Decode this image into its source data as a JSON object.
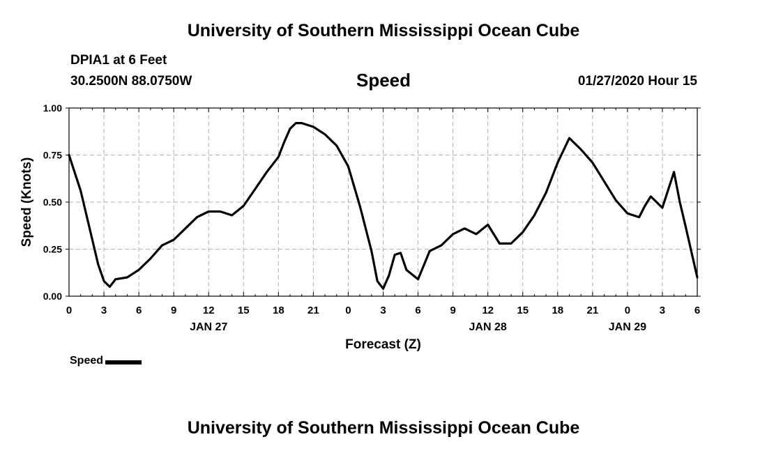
{
  "header": {
    "title_top": "University of Southern Mississippi Ocean Cube",
    "title_bottom": "University of Southern Mississippi Ocean Cube",
    "station": "DPIA1 at 6 Feet",
    "coords": "30.2500N 88.0750W",
    "variable": "Speed",
    "run": "01/27/2020 Hour 15"
  },
  "legend": {
    "label": "Speed",
    "color": "#000000"
  },
  "chart_data": {
    "type": "line",
    "title": "Speed",
    "xlabel": "Forecast (Z)",
    "ylabel": "Speed (Knots)",
    "ylim": [
      0,
      1
    ],
    "xlim": [
      0,
      54
    ],
    "grid": true,
    "yticks": [
      {
        "value": 0,
        "label": "0.00"
      },
      {
        "value": 0.25,
        "label": "0.25"
      },
      {
        "value": 0.5,
        "label": "0.50"
      },
      {
        "value": 0.75,
        "label": "0.75"
      },
      {
        "value": 1.0,
        "label": "1.00"
      }
    ],
    "xticks": [
      {
        "value": 0,
        "label": "0"
      },
      {
        "value": 3,
        "label": "3"
      },
      {
        "value": 6,
        "label": "6"
      },
      {
        "value": 9,
        "label": "9"
      },
      {
        "value": 12,
        "label": "12"
      },
      {
        "value": 15,
        "label": "15"
      },
      {
        "value": 18,
        "label": "18"
      },
      {
        "value": 21,
        "label": "21"
      },
      {
        "value": 24,
        "label": "0"
      },
      {
        "value": 27,
        "label": "3"
      },
      {
        "value": 30,
        "label": "6"
      },
      {
        "value": 33,
        "label": "9"
      },
      {
        "value": 36,
        "label": "12"
      },
      {
        "value": 39,
        "label": "15"
      },
      {
        "value": 42,
        "label": "18"
      },
      {
        "value": 45,
        "label": "21"
      },
      {
        "value": 48,
        "label": "0"
      },
      {
        "value": 51,
        "label": "3"
      },
      {
        "value": 54,
        "label": "6"
      }
    ],
    "date_labels": [
      {
        "value": 12,
        "label": "JAN 27"
      },
      {
        "value": 36,
        "label": "JAN 28"
      },
      {
        "value": 48,
        "label": "JAN 29"
      }
    ],
    "series": [
      {
        "name": "Speed",
        "color": "#000000",
        "x": [
          0,
          1,
          2,
          2.5,
          3,
          3.5,
          4,
          5,
          6,
          7,
          8,
          9,
          10,
          11,
          12,
          13,
          14,
          15,
          16,
          17,
          18,
          18.5,
          19,
          19.5,
          20,
          21,
          22,
          23,
          24,
          25,
          26,
          26.5,
          27,
          27.5,
          28,
          28.5,
          29,
          30,
          31,
          32,
          33,
          34,
          35,
          36,
          37,
          38,
          39,
          40,
          41,
          42,
          43,
          44,
          45,
          46,
          47,
          48,
          49,
          49.5,
          50,
          51,
          52,
          52.5,
          53,
          54
        ],
        "y": [
          0.75,
          0.56,
          0.3,
          0.17,
          0.08,
          0.05,
          0.09,
          0.1,
          0.14,
          0.2,
          0.27,
          0.3,
          0.36,
          0.42,
          0.45,
          0.45,
          0.43,
          0.48,
          0.57,
          0.66,
          0.74,
          0.82,
          0.89,
          0.92,
          0.92,
          0.9,
          0.86,
          0.8,
          0.69,
          0.48,
          0.24,
          0.08,
          0.04,
          0.11,
          0.22,
          0.23,
          0.14,
          0.09,
          0.24,
          0.27,
          0.33,
          0.36,
          0.33,
          0.38,
          0.28,
          0.28,
          0.34,
          0.43,
          0.55,
          0.71,
          0.84,
          0.78,
          0.71,
          0.61,
          0.51,
          0.44,
          0.42,
          0.48,
          0.53,
          0.47,
          0.66,
          0.5,
          0.37,
          0.1
        ]
      }
    ]
  }
}
